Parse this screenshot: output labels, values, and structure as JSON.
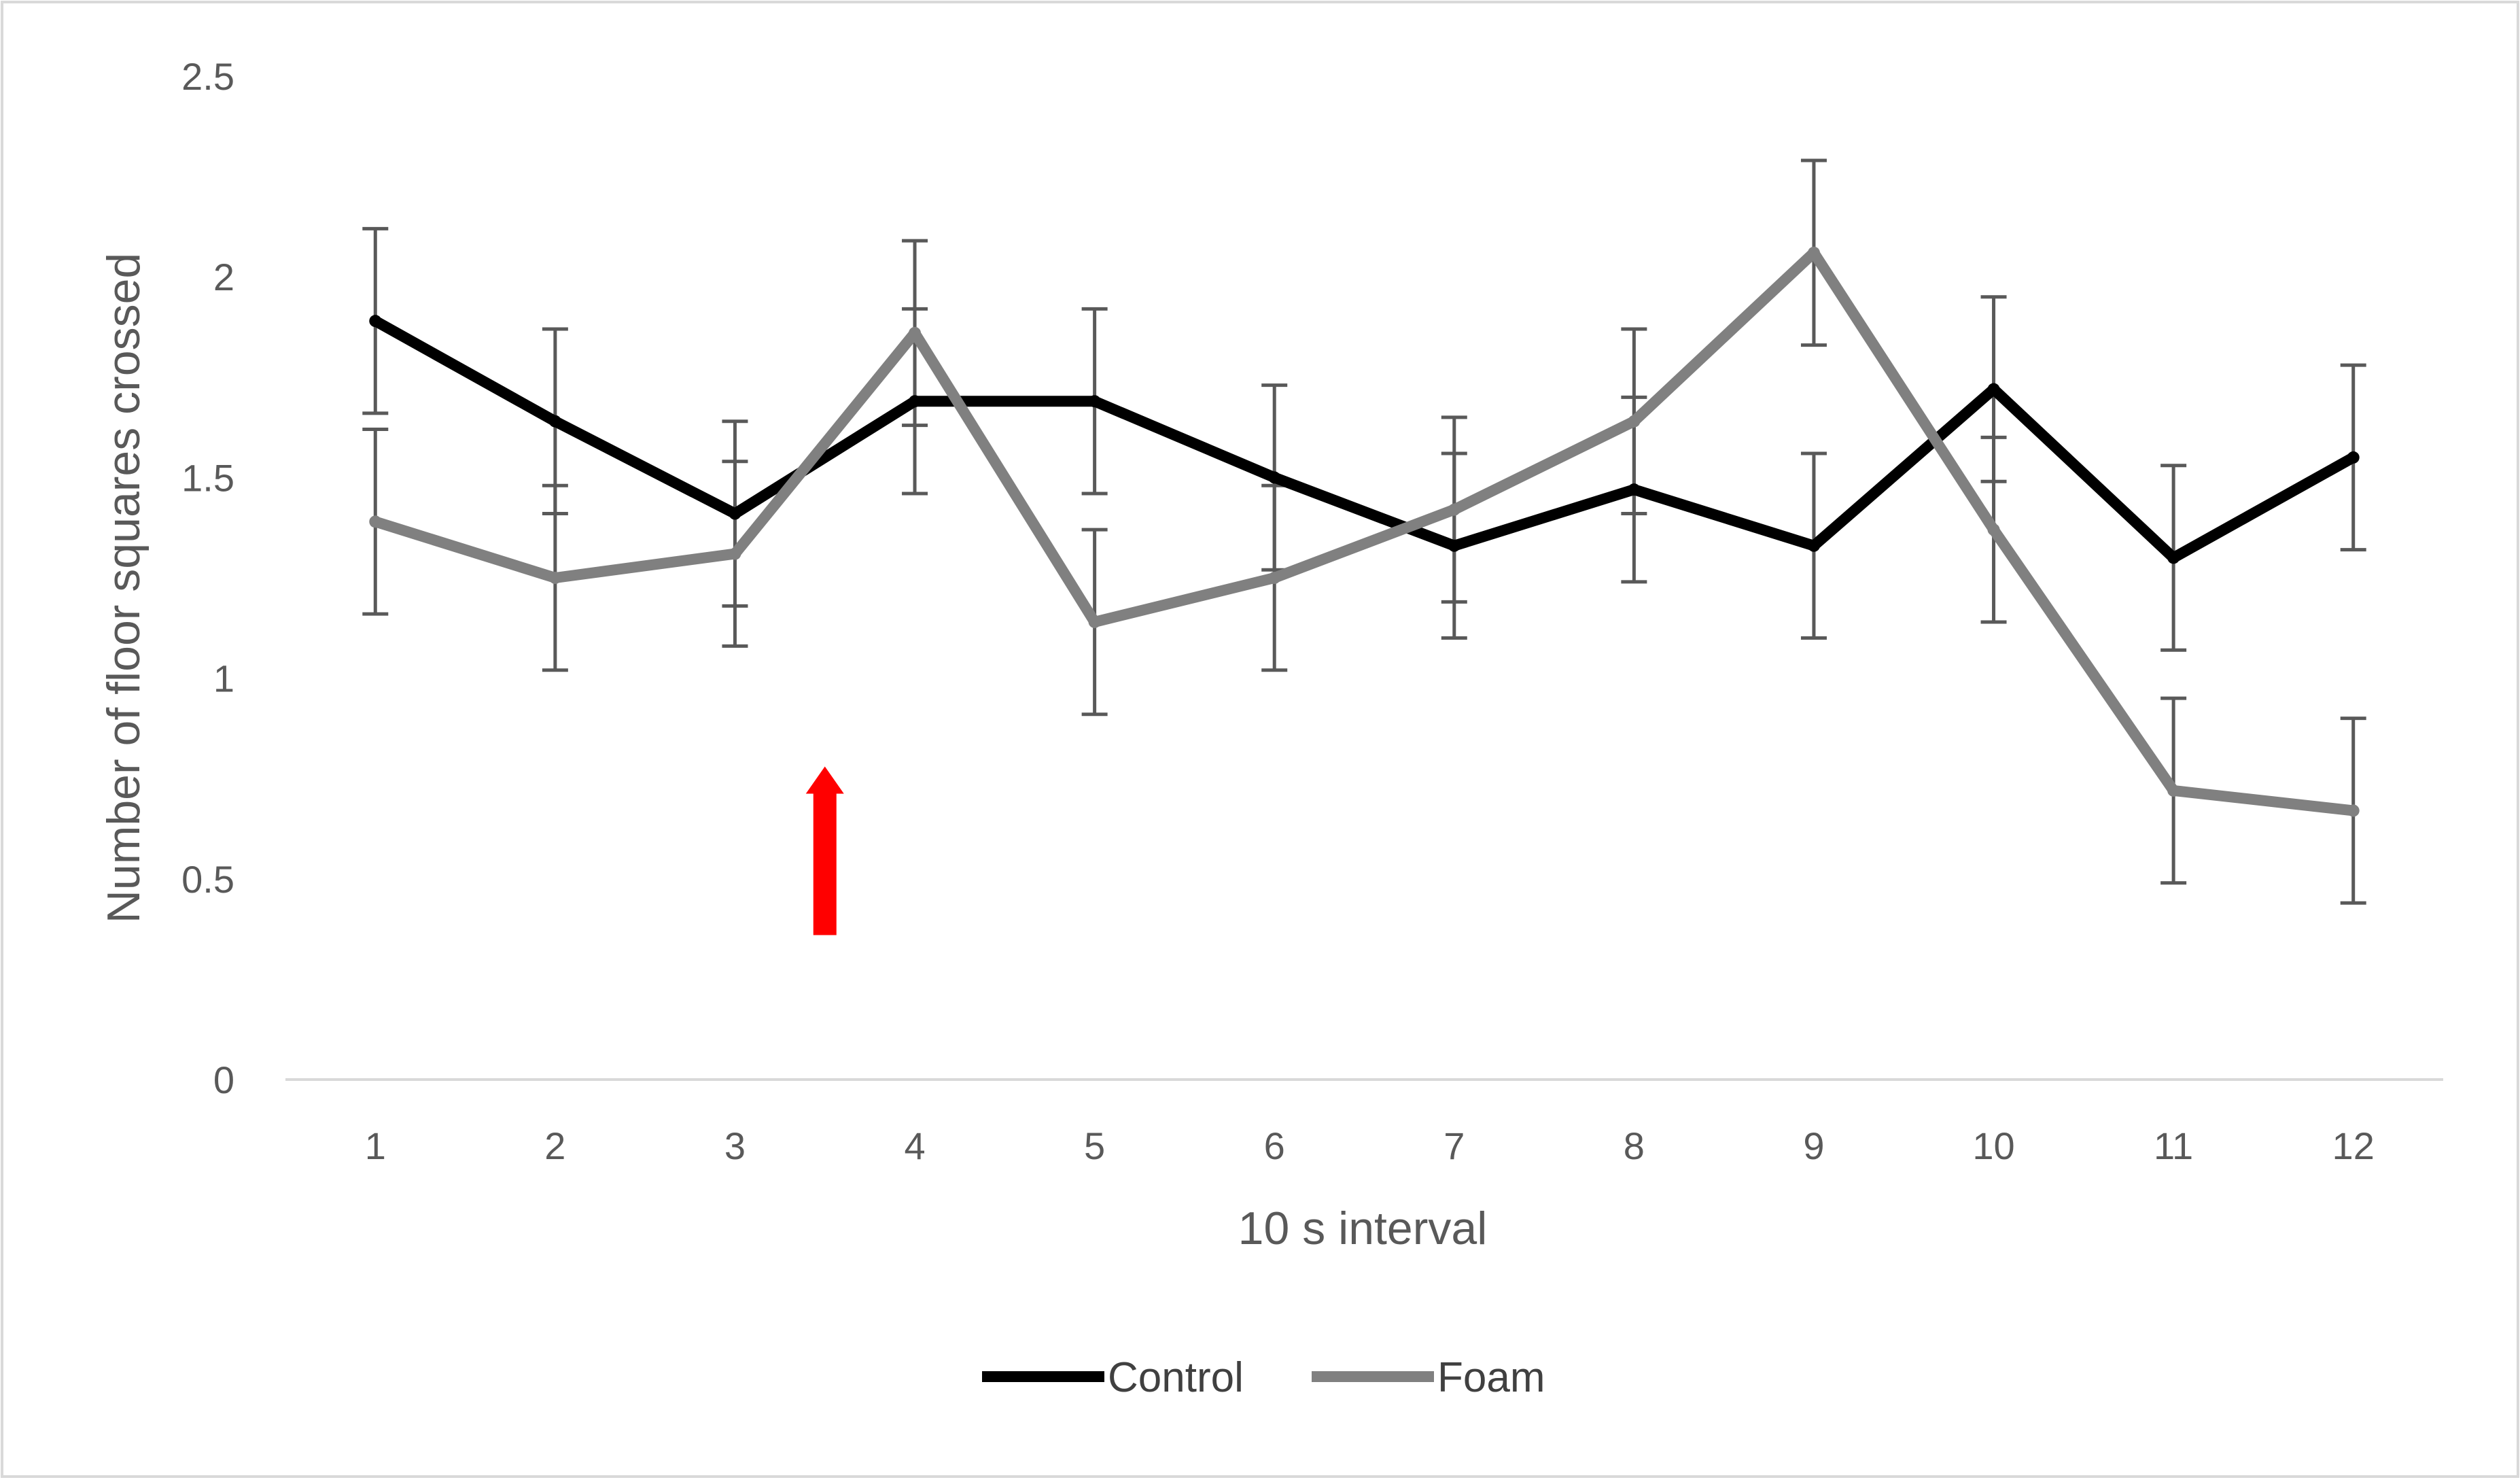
{
  "chart_data": {
    "type": "line",
    "title": "",
    "xlabel": "10 s interval",
    "ylabel": "Number of floor squares crossed",
    "ylim": [
      0,
      2.5
    ],
    "yticks": [
      "0",
      "0.5",
      "1",
      "1.5",
      "2",
      "2.5"
    ],
    "categories": [
      "1",
      "2",
      "3",
      "4",
      "5",
      "6",
      "7",
      "8",
      "9",
      "10",
      "11",
      "12"
    ],
    "series": [
      {
        "name": "Control",
        "color": "#000000",
        "values": [
          1.89,
          1.64,
          1.41,
          1.69,
          1.69,
          1.5,
          1.33,
          1.47,
          1.33,
          1.72,
          1.3,
          1.55
        ],
        "errors": [
          0.23,
          0.23,
          0.23,
          0.23,
          0.23,
          0.23,
          0.23,
          0.23,
          0.23,
          0.23,
          0.23,
          0.23
        ]
      },
      {
        "name": "Foam",
        "color": "#808080",
        "values": [
          1.39,
          1.25,
          1.31,
          1.86,
          1.14,
          1.25,
          1.42,
          1.64,
          2.06,
          1.37,
          0.72,
          0.67
        ],
        "errors": [
          0.23,
          0.23,
          0.23,
          0.23,
          0.23,
          0.23,
          0.23,
          0.23,
          0.23,
          0.23,
          0.23,
          0.23
        ]
      }
    ],
    "legend_position": "bottom",
    "annotation": {
      "type": "arrow",
      "direction": "up",
      "color": "#ff0000",
      "x": 3.5,
      "y_from": 0.36,
      "y_to": 0.78
    }
  }
}
